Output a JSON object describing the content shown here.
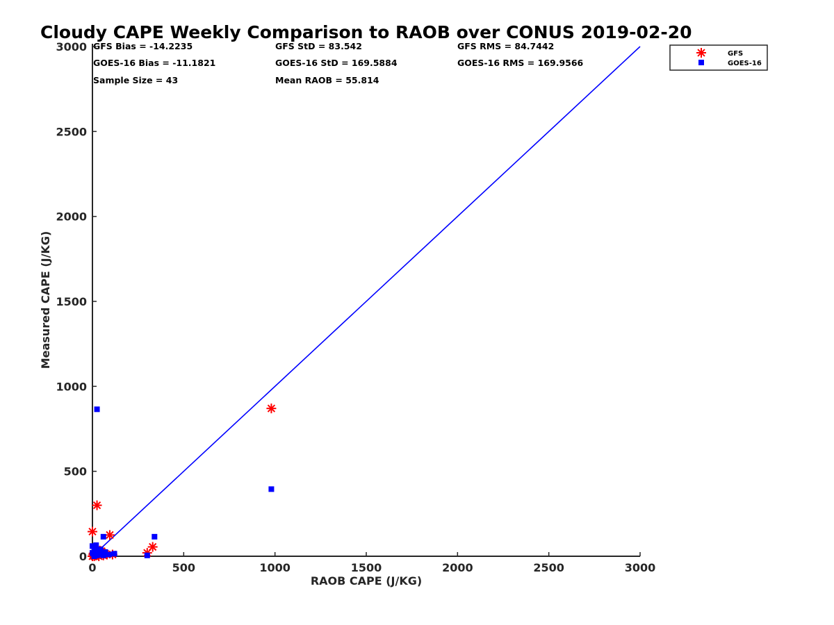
{
  "chart_data": {
    "type": "scatter",
    "title": "Cloudy CAPE Weekly Comparison to RAOB over CONUS 2019-02-20",
    "xlabel": "RAOB CAPE (J/KG)",
    "ylabel": "Measured CAPE (J/KG)",
    "xlim": [
      0,
      3000
    ],
    "ylim": [
      0,
      3000
    ],
    "xticks": [
      0,
      500,
      1000,
      1500,
      2000,
      2500,
      3000
    ],
    "yticks": [
      0,
      500,
      1000,
      1500,
      2000,
      2500,
      3000
    ],
    "xtick_labels": [
      "0",
      "500",
      "1000",
      "1500",
      "2000",
      "2500",
      "3000"
    ],
    "ytick_labels": [
      "0",
      "500",
      "1000",
      "1500",
      "2000",
      "2500",
      "3000"
    ],
    "grid": false,
    "legend_position": "top-right",
    "stats": [
      [
        "GFS Bias = -14.2235",
        "GFS StD = 83.542",
        "GFS RMS = 84.7442"
      ],
      [
        "GOES-16 Bias = -11.1821",
        "GOES-16 StD = 169.5884",
        "GOES-16 RMS = 169.9566"
      ],
      [
        "Sample Size = 43",
        "Mean RAOB = 55.814",
        ""
      ]
    ],
    "reference_line": {
      "type": "one-to-one",
      "x": [
        0,
        3000
      ],
      "y": [
        0,
        3000
      ],
      "color": "#0000ff"
    },
    "series": [
      {
        "name": "GFS",
        "marker": "asterisk",
        "color": "#ff0000",
        "points": [
          [
            980,
            870
          ],
          [
            25,
            300
          ],
          [
            0,
            145
          ],
          [
            95,
            125
          ],
          [
            330,
            55
          ],
          [
            300,
            20
          ],
          [
            110,
            10
          ],
          [
            80,
            10
          ],
          [
            60,
            5
          ],
          [
            40,
            15
          ],
          [
            30,
            10
          ],
          [
            20,
            5
          ],
          [
            15,
            25
          ],
          [
            10,
            0
          ],
          [
            5,
            10
          ],
          [
            0,
            0
          ],
          [
            35,
            0
          ],
          [
            50,
            30
          ],
          [
            70,
            15
          ],
          [
            25,
            40
          ]
        ]
      },
      {
        "name": "GOES-16",
        "marker": "square",
        "color": "#0000ff",
        "points": [
          [
            25,
            865
          ],
          [
            980,
            395
          ],
          [
            340,
            115
          ],
          [
            60,
            115
          ],
          [
            120,
            15
          ],
          [
            300,
            5
          ],
          [
            90,
            10
          ],
          [
            0,
            60
          ],
          [
            10,
            50
          ],
          [
            20,
            45
          ],
          [
            30,
            35
          ],
          [
            15,
            25
          ],
          [
            5,
            15
          ],
          [
            40,
            20
          ],
          [
            50,
            10
          ],
          [
            25,
            5
          ],
          [
            35,
            30
          ],
          [
            10,
            0
          ],
          [
            60,
            5
          ],
          [
            45,
            40
          ],
          [
            20,
            65
          ],
          [
            0,
            20
          ],
          [
            70,
            25
          ]
        ]
      }
    ]
  }
}
